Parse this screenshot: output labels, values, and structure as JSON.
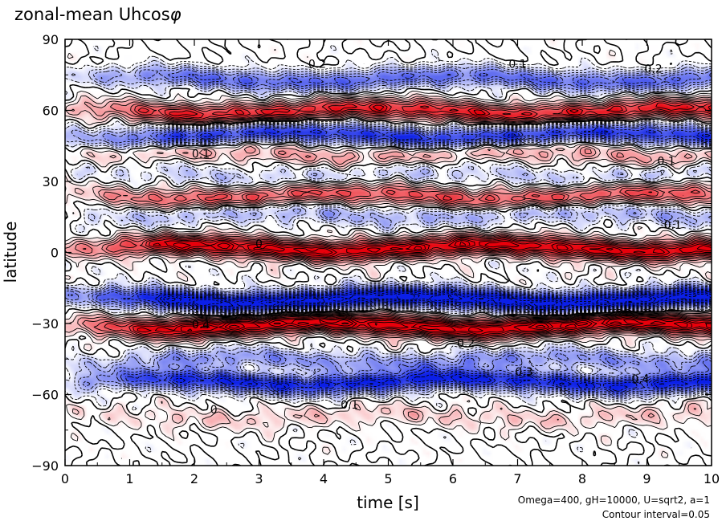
{
  "title_main": "zonal-mean Uhcos",
  "title_symbol": "φ",
  "params_text": "Omega=400, gH=10000, U=sqrt2, a=1",
  "contour_text": "Contour interval=0.05",
  "colors": {
    "positive": "#e8000b",
    "negative": "#0b1fe8",
    "contour": "#000000"
  },
  "chart_data": {
    "type": "heatmap",
    "title": "zonal-mean Uhcosφ",
    "xlabel": "time [s]",
    "ylabel": "latitude",
    "xlim": [
      0,
      10
    ],
    "ylim": [
      -90,
      90
    ],
    "xticks": [
      "0",
      "1",
      "2",
      "3",
      "4",
      "5",
      "6",
      "7",
      "8",
      "9",
      "10"
    ],
    "yticks": [
      "−90",
      "−60",
      "−30",
      "0",
      "30",
      "60",
      "90"
    ],
    "contour_interval": 0.05,
    "colorscale": "blue (negative) - white - red (positive), solid contours positive, dashed contours negative",
    "zonal_bands": [
      {
        "latitude": 74,
        "sign": "negative",
        "amplitude": 0.35
      },
      {
        "latitude": 60,
        "sign": "positive",
        "amplitude": 0.4
      },
      {
        "latitude": 50,
        "sign": "negative",
        "amplitude": 0.4
      },
      {
        "latitude": 42,
        "sign": "positive",
        "amplitude": 0.15
      },
      {
        "latitude": 33,
        "sign": "negative",
        "amplitude": 0.1
      },
      {
        "latitude": 24,
        "sign": "positive",
        "amplitude": 0.3
      },
      {
        "latitude": 16,
        "sign": "negative",
        "amplitude": 0.15
      },
      {
        "latitude": 2,
        "sign": "positive",
        "amplitude": 0.5
      },
      {
        "latitude": -20,
        "sign": "negative",
        "amplitude": 0.6
      },
      {
        "latitude": -31,
        "sign": "positive",
        "amplitude": 0.55
      },
      {
        "latitude": -46,
        "sign": "negative",
        "amplitude": 0.2
      },
      {
        "latitude": -55,
        "sign": "negative",
        "amplitude": 0.45
      },
      {
        "latitude": -70,
        "sign": "positive",
        "amplitude": 0.1
      }
    ],
    "contour_labels": [
      {
        "t": 3.9,
        "lat": 78,
        "text": "0.2"
      },
      {
        "t": 7.0,
        "lat": 78,
        "text": "0.1"
      },
      {
        "t": 9.1,
        "lat": 76,
        "text": "0.2"
      },
      {
        "t": 2.1,
        "lat": 40,
        "text": "0.1"
      },
      {
        "t": 9.3,
        "lat": 37,
        "text": "0.1"
      },
      {
        "t": 3.0,
        "lat": 2,
        "text": "0"
      },
      {
        "t": 9.4,
        "lat": 10,
        "text": "0.1"
      },
      {
        "t": 2.1,
        "lat": -32,
        "text": "0.4"
      },
      {
        "t": 6.2,
        "lat": -40,
        "text": "0.2"
      },
      {
        "t": 7.1,
        "lat": -52,
        "text": "0.3"
      },
      {
        "t": 8.9,
        "lat": -55,
        "text": "0.4"
      },
      {
        "t": 2.3,
        "lat": -68,
        "text": "0"
      },
      {
        "t": 4.4,
        "lat": -66,
        "text": "0.1"
      }
    ]
  }
}
